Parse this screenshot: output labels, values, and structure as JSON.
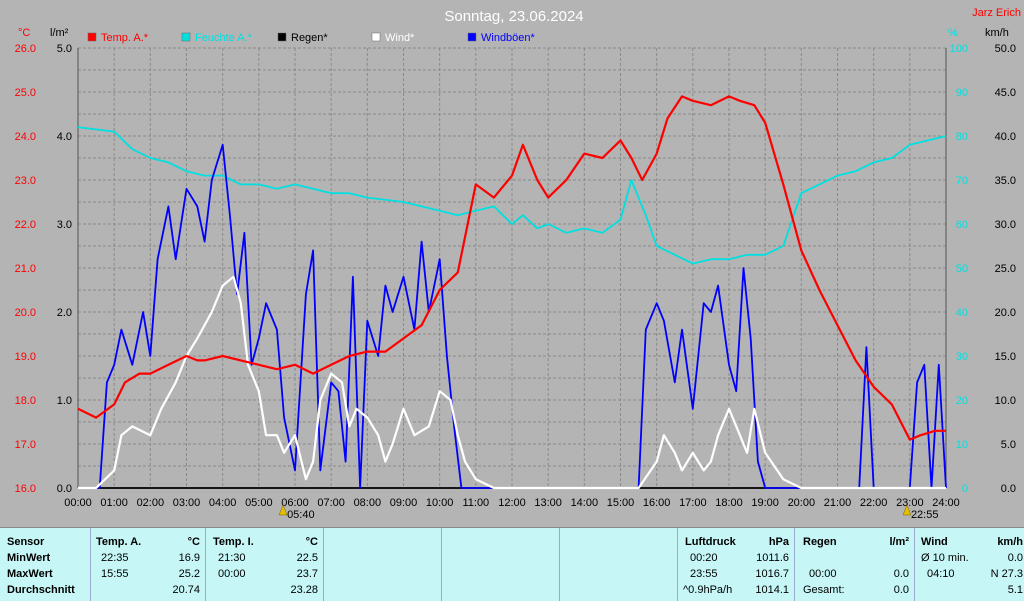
{
  "chart_data": {
    "type": "line",
    "title": "Sonntag, 23.06.2024",
    "corner_label": "Jarz Erich",
    "left_units": [
      "°C",
      "l/m²"
    ],
    "right_units": [
      "%",
      "km/h"
    ],
    "x_ticks": [
      "00:00",
      "01:00",
      "02:00",
      "03:00",
      "04:00",
      "05:00",
      "06:00",
      "07:00",
      "08:00",
      "09:00",
      "10:00",
      "11:00",
      "12:00",
      "13:00",
      "14:00",
      "15:00",
      "16:00",
      "17:00",
      "18:00",
      "19:00",
      "20:00",
      "21:00",
      "22:00",
      "23:00",
      "24:00"
    ],
    "temp_ticks": [
      "16.0",
      "17.0",
      "18.0",
      "19.0",
      "20.0",
      "21.0",
      "22.0",
      "23.0",
      "24.0",
      "25.0",
      "26.0"
    ],
    "rain_ticks": [
      "0.0",
      "1.0",
      "2.0",
      "3.0",
      "4.0",
      "5.0"
    ],
    "hum_ticks": [
      "0",
      "10",
      "20",
      "30",
      "40",
      "50",
      "60",
      "70",
      "80",
      "90",
      "100"
    ],
    "wind_ticks": [
      "0.0",
      "5.0",
      "10.0",
      "15.0",
      "20.0",
      "25.0",
      "30.0",
      "35.0",
      "40.0",
      "45.0",
      "50.0"
    ],
    "xlim": [
      0,
      24
    ],
    "ylim_temp": [
      16,
      26
    ],
    "ylim_rain": [
      0,
      5
    ],
    "ylim_humidity": [
      0,
      100
    ],
    "ylim_wind": [
      0,
      50
    ],
    "grid": true,
    "legend_placement": "top-left",
    "sun_events": [
      {
        "label": "05:40",
        "hour": 5.67
      },
      {
        "label": "22:55",
        "hour": 22.92
      }
    ],
    "series": [
      {
        "name": "Temp. A.*",
        "color": "#ff0000",
        "axis": "temp",
        "x": [
          0,
          0.5,
          1,
          1.3,
          1.7,
          2,
          2.5,
          3,
          3.3,
          3.5,
          4,
          4.5,
          5,
          5.5,
          6,
          6.5,
          7,
          7.5,
          8,
          8.5,
          9,
          9.5,
          10,
          10.5,
          11,
          11.5,
          12,
          12.3,
          12.7,
          13,
          13.5,
          14,
          14.5,
          15,
          15.3,
          15.6,
          16,
          16.3,
          16.7,
          17,
          17.5,
          18,
          18.3,
          18.7,
          19,
          19.5,
          20,
          20.5,
          21,
          21.5,
          22,
          22.5,
          23,
          23.3,
          23.7,
          24
        ],
        "y": [
          17.8,
          17.6,
          17.9,
          18.4,
          18.6,
          18.6,
          18.8,
          19.0,
          18.9,
          18.9,
          19.0,
          18.9,
          18.8,
          18.7,
          18.8,
          18.6,
          18.8,
          19.0,
          19.1,
          19.1,
          19.4,
          19.7,
          20.5,
          20.9,
          22.9,
          22.6,
          23.1,
          23.8,
          23.0,
          22.6,
          23.0,
          23.6,
          23.5,
          23.9,
          23.5,
          23.0,
          23.6,
          24.4,
          24.9,
          24.8,
          24.7,
          24.9,
          24.8,
          24.7,
          24.3,
          22.9,
          21.4,
          20.5,
          19.7,
          18.9,
          18.3,
          17.9,
          17.1,
          17.2,
          17.3,
          17.3
        ]
      },
      {
        "name": "Feuchte A.*",
        "color": "#00e0e0",
        "axis": "humidity",
        "x": [
          0,
          1,
          1.5,
          2,
          2.5,
          3,
          3.5,
          4,
          4.5,
          5,
          5.5,
          6,
          7,
          7.5,
          8,
          9,
          10,
          10.5,
          11,
          11.5,
          12,
          12.3,
          12.7,
          13,
          13.5,
          14,
          14.5,
          15,
          15.3,
          15.7,
          16,
          16.5,
          17,
          17.5,
          18,
          18.5,
          19,
          19.5,
          20,
          20.5,
          21,
          21.5,
          22,
          22.5,
          23,
          23.5,
          24
        ],
        "y": [
          82,
          81,
          77,
          75,
          74,
          72,
          71,
          71,
          69,
          69,
          68,
          69,
          67,
          67,
          66,
          65,
          63,
          62,
          63,
          64,
          60,
          62,
          59,
          60,
          58,
          59,
          58,
          61,
          70,
          62,
          55,
          53,
          51,
          52,
          52,
          53,
          53,
          55,
          67,
          69,
          71,
          72,
          74,
          75,
          78,
          79,
          80
        ]
      },
      {
        "name": "Regen*",
        "color": "#000000",
        "axis": "rain",
        "x": [
          0,
          24
        ],
        "y": [
          0,
          0
        ]
      },
      {
        "name": "Wind*",
        "color": "#ffffff",
        "axis": "wind",
        "x": [
          0,
          0.5,
          1,
          1.2,
          1.5,
          2,
          2.3,
          2.7,
          3,
          3.3,
          3.7,
          4,
          4.3,
          4.5,
          4.7,
          5,
          5.2,
          5.5,
          5.7,
          6,
          6.3,
          6.5,
          6.7,
          7,
          7.3,
          7.5,
          7.7,
          8,
          8.3,
          8.5,
          8.7,
          9,
          9.3,
          9.7,
          10,
          10.3,
          10.5,
          10.7,
          11,
          11.5,
          12,
          12.5,
          15.5,
          16,
          16.2,
          16.5,
          16.7,
          17,
          17.3,
          17.5,
          17.7,
          18,
          18.3,
          18.5,
          18.7,
          19,
          19.5,
          20,
          24
        ],
        "y": [
          0,
          0,
          2,
          6,
          7,
          6,
          9,
          12,
          15,
          17,
          20,
          23,
          24,
          21,
          14,
          11,
          6,
          6,
          4,
          6,
          1,
          3,
          10,
          13,
          12,
          7,
          9,
          8,
          6,
          3,
          5,
          9,
          6,
          7,
          11,
          10,
          6,
          3,
          1,
          0,
          0,
          0,
          0,
          3,
          6,
          4,
          2,
          4,
          2,
          3,
          6,
          9,
          6,
          4,
          9,
          4,
          1,
          0,
          0
        ]
      },
      {
        "name": "Windböen*",
        "color": "#0000ff",
        "axis": "wind",
        "x": [
          0,
          0.6,
          0.8,
          1,
          1.2,
          1.5,
          1.8,
          2,
          2.2,
          2.5,
          2.7,
          3,
          3.3,
          3.5,
          3.7,
          4,
          4.2,
          4.4,
          4.6,
          4.8,
          5,
          5.2,
          5.5,
          5.7,
          6,
          6.3,
          6.5,
          6.7,
          7,
          7.2,
          7.4,
          7.6,
          7.8,
          8,
          8.3,
          8.5,
          8.7,
          9,
          9.3,
          9.5,
          9.7,
          10,
          10.2,
          10.4,
          10.6,
          11,
          11.5,
          12,
          15.5,
          15.7,
          16,
          16.2,
          16.5,
          16.7,
          17,
          17.3,
          17.5,
          17.7,
          18,
          18.2,
          18.4,
          18.6,
          18.8,
          19,
          21.6,
          21.8,
          22,
          22.2,
          22.5,
          23,
          23.2,
          23.4,
          23.6,
          23.8,
          24
        ],
        "y": [
          0,
          0,
          12,
          14,
          18,
          14,
          20,
          15,
          26,
          32,
          26,
          34,
          32,
          28,
          35,
          39,
          31,
          22,
          29,
          14,
          17,
          21,
          18,
          8,
          2,
          22,
          27,
          2,
          12,
          11,
          3,
          24,
          0,
          19,
          15,
          23,
          20,
          24,
          18,
          28,
          20,
          26,
          15,
          7,
          0,
          0,
          0,
          0,
          0,
          18,
          21,
          19,
          12,
          18,
          9,
          21,
          20,
          23,
          14,
          11,
          25,
          17,
          3,
          0,
          0,
          16,
          0,
          0,
          0,
          0,
          12,
          14,
          0,
          14,
          0
        ]
      }
    ]
  },
  "stats": {
    "sensor_label": "Sensor",
    "rows": [
      "MinWert",
      "MaxWert",
      "Durchschnitt"
    ],
    "temp_a": {
      "title": "Temp. A.",
      "unit": "°C",
      "min_time": "22:35",
      "min": "16.9",
      "max_time": "15:55",
      "max": "25.2",
      "avg": "20.74"
    },
    "temp_i": {
      "title": "Temp. I.",
      "unit": "°C",
      "min_time": "21:30",
      "min": "22.5",
      "max_time": "00:00",
      "max": "23.7",
      "avg": "23.28"
    },
    "pressure": {
      "title": "Luftdruck",
      "unit": "hPa",
      "min_time": "00:20",
      "min": "1011.6",
      "max_time": "23:55",
      "max": "1016.7",
      "trend": "^0.9hPa/h",
      "avg": "1014.1"
    },
    "rain": {
      "title": "Regen",
      "unit": "l/m²",
      "max_time": "00:00",
      "max": "0.0",
      "total_label": "Gesamt:",
      "total": "0.0"
    },
    "wind": {
      "title": "Wind",
      "unit": "km/h",
      "avg_label": "Ø 10 min.",
      "avg": "0.0",
      "max_time": "04:10",
      "max": "N 27.3",
      "last": "5.1"
    }
  }
}
